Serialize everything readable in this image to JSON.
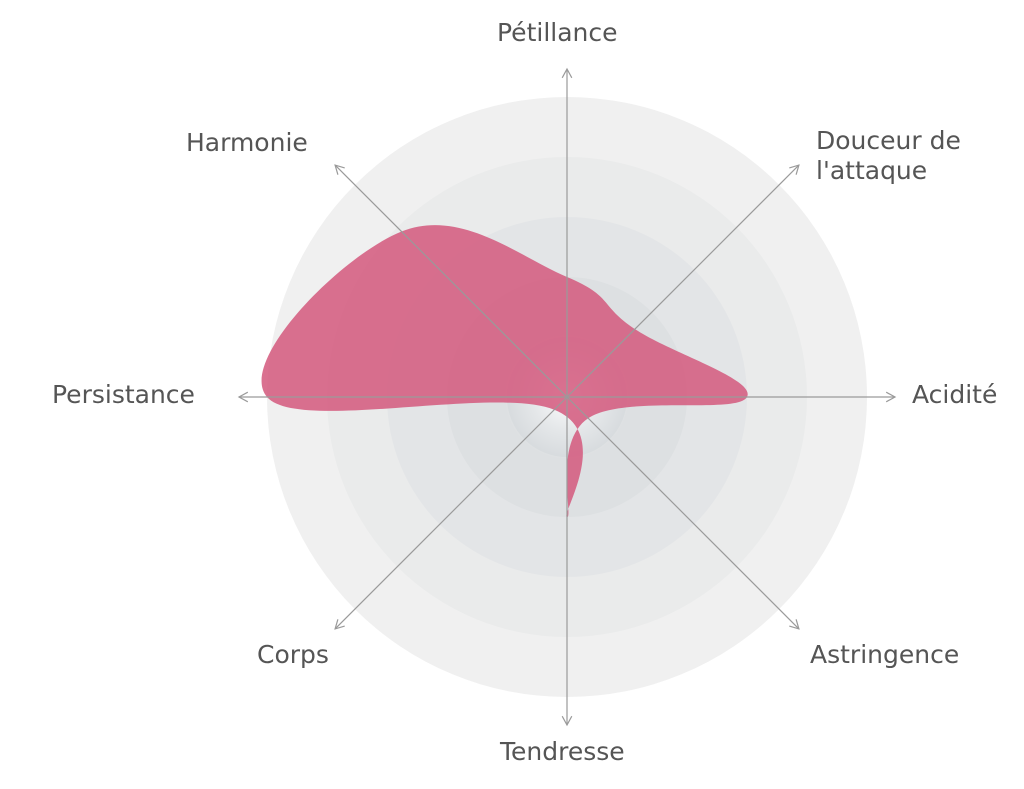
{
  "chart_data": {
    "type": "radar",
    "title": "",
    "axes": [
      "Pétillance",
      "Douceur de l'attaque",
      "Acidité",
      "Astringence",
      "Tendresse",
      "Corps",
      "Persistance",
      "Harmonie"
    ],
    "scale": {
      "min": 0,
      "max": 5,
      "rings": 5
    },
    "series": [
      {
        "values": [
          2.0,
          1.6,
          3.0,
          0.5,
          2.0,
          0.3,
          5.0,
          3.9
        ]
      }
    ],
    "grid": true,
    "legend": "none"
  },
  "colors": {
    "series_fill": "#d45a7e",
    "ring_outer": "#f0f0f0",
    "ring_inner": "#d6dadd",
    "axis_line": "#9a9a9a",
    "label_text": "#555555"
  }
}
